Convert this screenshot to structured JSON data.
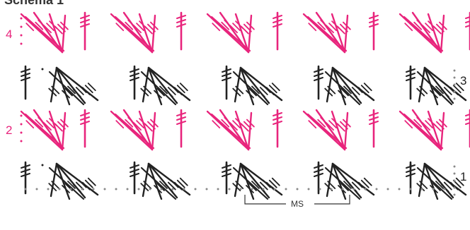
{
  "title": "Schema 1",
  "colors": {
    "pink": "#e8247c",
    "black": "#222222",
    "dots": "#888888"
  },
  "rows": [
    {
      "label": "4",
      "side": "left",
      "color": "pink"
    },
    {
      "label": "3",
      "side": "right",
      "color": "black"
    },
    {
      "label": "2",
      "side": "left",
      "color": "pink"
    },
    {
      "label": "1",
      "side": "right",
      "color": "black"
    }
  ],
  "repeat_label": "MS",
  "repeats_per_row": 5
}
